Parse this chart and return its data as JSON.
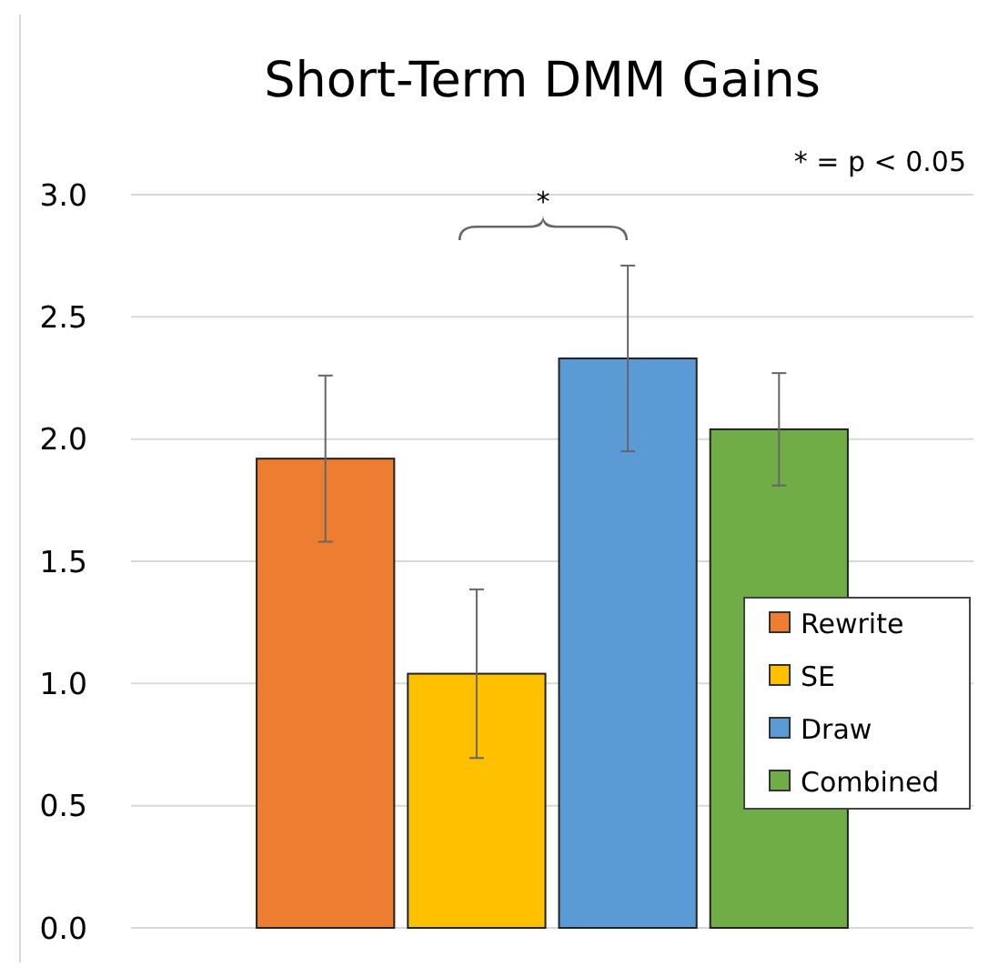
{
  "chart_data": {
    "type": "bar",
    "title": "Short-Term DMM Gains",
    "categories": [
      null
    ],
    "series": [
      {
        "name": "Rewrite",
        "color": "#ed7d31",
        "values": [
          1.92
        ],
        "errors": [
          0.34
        ]
      },
      {
        "name": "SE",
        "color": "#ffc000",
        "values": [
          1.04
        ],
        "errors": [
          0.345
        ]
      },
      {
        "name": "Draw",
        "color": "#5b9bd5",
        "values": [
          2.33
        ],
        "errors": [
          0.38
        ]
      },
      {
        "name": "Combined",
        "color": "#70ad47",
        "values": [
          2.04
        ],
        "errors": [
          0.23
        ]
      }
    ],
    "ylim": [
      0,
      3
    ],
    "yticks": [
      {
        "value": 0,
        "label": "0.0"
      },
      {
        "value": 0.5,
        "label": "0.5"
      },
      {
        "value": 1,
        "label": "1.0"
      },
      {
        "value": 1.5,
        "label": "1.5"
      },
      {
        "value": 2,
        "label": "2.0"
      },
      {
        "value": 2.5,
        "label": "2.5"
      },
      {
        "value": 3,
        "label": "3.0"
      }
    ],
    "grid": "y",
    "legend": "right",
    "tick_labels": "y",
    "annotations": [
      "* = p < 0.05",
      "*"
    ]
  }
}
